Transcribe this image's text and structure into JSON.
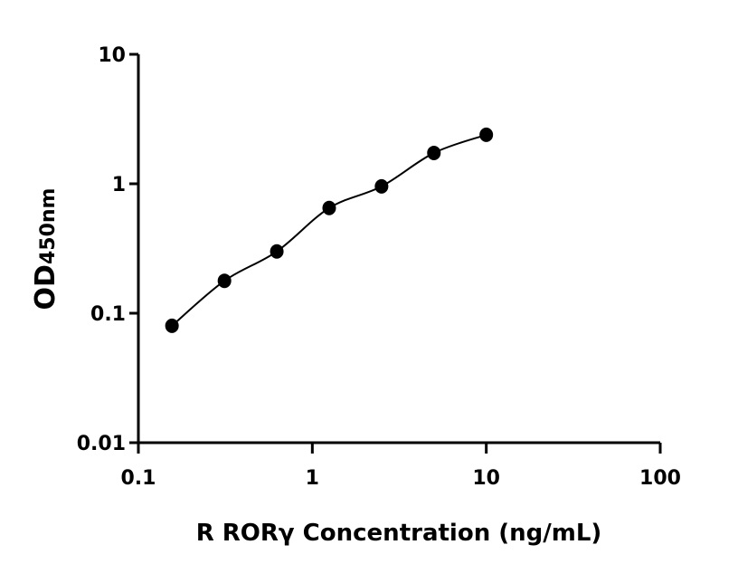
{
  "chart_data": {
    "type": "scatter",
    "title": "",
    "xlabel": "R RORγ Concentration (ng/mL)",
    "ylabel": "OD",
    "ylabel_subscript": "450nm",
    "x_scale": "log",
    "y_scale": "log",
    "xlim": [
      0.1,
      100
    ],
    "ylim": [
      0.01,
      10
    ],
    "x_ticks": [
      0.1,
      1,
      10,
      100
    ],
    "x_tick_labels": [
      "0.1",
      "1",
      "10",
      "100"
    ],
    "y_ticks": [
      0.01,
      0.1,
      1,
      10
    ],
    "y_tick_labels": [
      "0.01",
      "0.1",
      "1",
      "10"
    ],
    "grid": false,
    "fit_curve": true,
    "marker_color": "#000000",
    "series": [
      {
        "x": [
          0.156,
          0.3125,
          0.625,
          1.25,
          2.5,
          5,
          10
        ],
        "y": [
          0.08,
          0.178,
          0.3,
          0.65,
          0.955,
          1.73,
          2.39
        ]
      }
    ]
  }
}
